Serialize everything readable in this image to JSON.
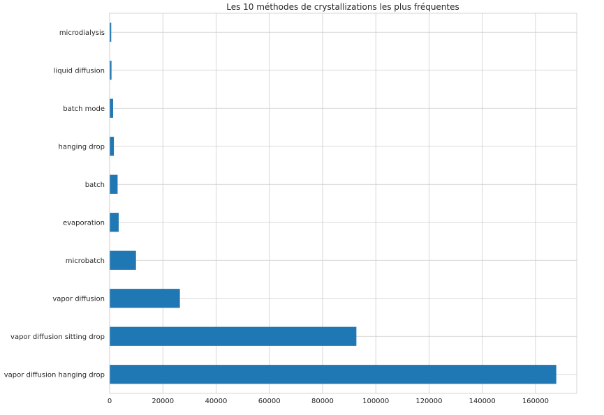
{
  "chart_data": {
    "type": "bar",
    "orientation": "horizontal",
    "title": "Les 10 méthodes de crystallizations les plus fréquentes",
    "xlabel": "",
    "ylabel": "",
    "categories": [
      "vapor diffusion  hanging drop",
      "vapor diffusion  sitting drop",
      "vapor diffusion",
      "microbatch",
      "evaporation",
      "batch",
      "hanging drop",
      "batch mode",
      "liquid diffusion",
      "microdialysis"
    ],
    "values": [
      167800,
      92700,
      26400,
      9900,
      3400,
      3000,
      1600,
      1300,
      700,
      600
    ],
    "xlim": [
      0,
      175500
    ],
    "xticks": [
      0,
      20000,
      40000,
      60000,
      80000,
      100000,
      120000,
      140000,
      160000
    ],
    "xtick_labels": [
      "0",
      "20000",
      "40000",
      "60000",
      "80000",
      "100000",
      "120000",
      "140000",
      "160000"
    ],
    "bar_color": "#1f77b4",
    "grid": true,
    "legend": "none"
  }
}
